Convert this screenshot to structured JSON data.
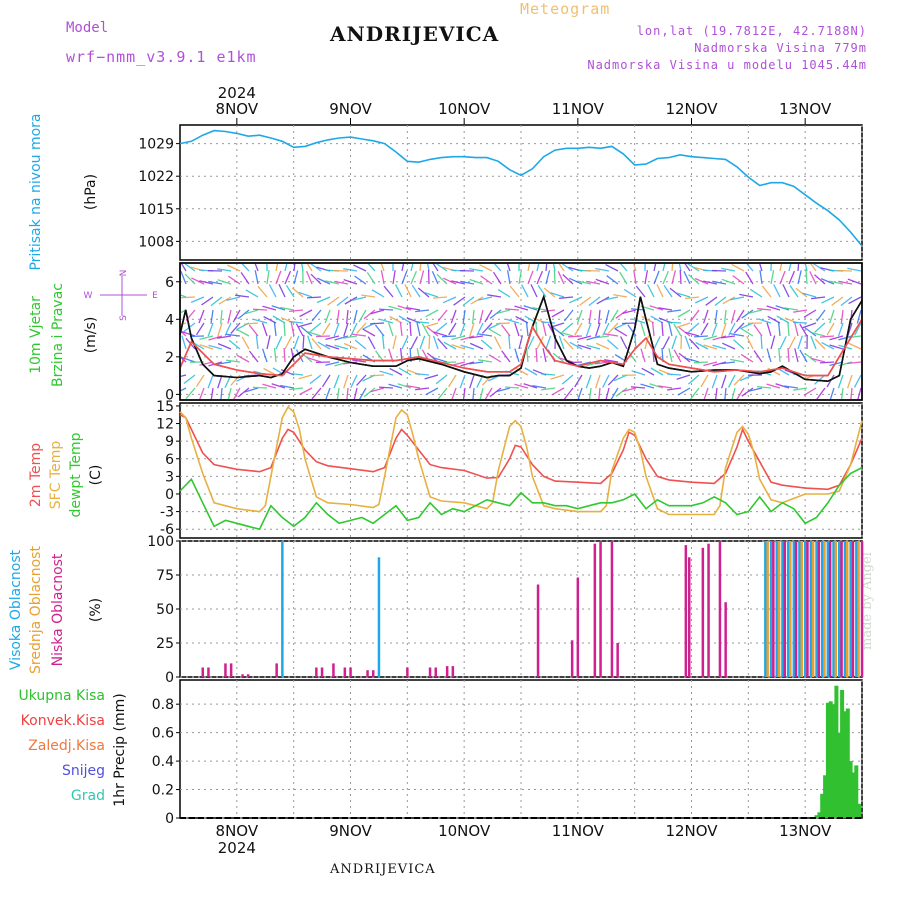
{
  "header": {
    "title": "ANDRIJEVICA",
    "subtitle": "Meteogram",
    "model_label": "Model",
    "model_name": "wrf−nmm_v3.9.1  e1km",
    "coords": "lon,lat (19.7812E, 42.7188N)",
    "elevation": "Nadmorska Visina 779m",
    "elevation_model": "Nadmorska Visina u modelu 1045.44m",
    "year": "2024"
  },
  "footer": {
    "location": "ANDRIJEVICA",
    "made_by": "made by Angel"
  },
  "colors": {
    "pressure": "#1ea8e8",
    "temp2m": "#f05050",
    "sfc": "#e8b040",
    "dewpt": "#30c830",
    "cloud_high": "#1ea8e8",
    "cloud_mid": "#e8a030",
    "cloud_low": "#d02090",
    "precip": "#30c030",
    "purple": "#b050d8"
  },
  "chart_data": [
    {
      "type": "line",
      "panel": "pressure",
      "ylabel": [
        "Pritisak na nivou mora",
        "(hPa)"
      ],
      "ylim": [
        1004,
        1033
      ],
      "yticks": [
        1008,
        1015,
        1022,
        1029
      ],
      "x_dates": [
        "8NOV",
        "9NOV",
        "10NOV",
        "11NOV",
        "12NOV",
        "13NOV"
      ],
      "x_start": 7.5,
      "x_end": 13.5,
      "grid": true,
      "series": [
        {
          "color": "#1ea8e8",
          "x": [
            7.5,
            7.6,
            7.7,
            7.8,
            7.9,
            8.0,
            8.1,
            8.2,
            8.3,
            8.4,
            8.5,
            8.6,
            8.7,
            8.8,
            8.9,
            9.0,
            9.1,
            9.2,
            9.3,
            9.4,
            9.5,
            9.6,
            9.7,
            9.8,
            9.9,
            10.0,
            10.1,
            10.2,
            10.3,
            10.4,
            10.5,
            10.6,
            10.7,
            10.8,
            10.9,
            11.0,
            11.1,
            11.2,
            11.3,
            11.4,
            11.5,
            11.6,
            11.7,
            11.8,
            11.9,
            12.0,
            12.1,
            12.2,
            12.3,
            12.4,
            12.5,
            12.6,
            12.7,
            12.8,
            12.9,
            13.0,
            13.1,
            13.2,
            13.3,
            13.4,
            13.5
          ],
          "y": [
            1029,
            1029.5,
            1030.8,
            1031.8,
            1031.6,
            1031.2,
            1030.6,
            1030.8,
            1030.2,
            1029.5,
            1028.2,
            1028.4,
            1029.2,
            1029.8,
            1030.2,
            1030.4,
            1030,
            1029.6,
            1029,
            1027.2,
            1025.2,
            1025,
            1025.6,
            1026,
            1026.2,
            1026.2,
            1026,
            1026,
            1025.2,
            1023.4,
            1022.2,
            1023.6,
            1026.2,
            1027.6,
            1028,
            1028,
            1028.2,
            1028,
            1028.4,
            1026.8,
            1024.4,
            1024.6,
            1025.8,
            1026,
            1026.6,
            1026.2,
            1026,
            1025.8,
            1025.6,
            1024,
            1021.8,
            1020,
            1020.6,
            1020.6,
            1019.8,
            1018,
            1016.2,
            1014.6,
            1012.6,
            1010,
            1007
          ]
        }
      ]
    },
    {
      "type": "line",
      "panel": "wind",
      "ylabel": [
        "10m Vjetar",
        "Brzina i Pravac",
        "(m/s)"
      ],
      "compass": [
        "N",
        "S",
        "W",
        "E"
      ],
      "ylim": [
        -0.3,
        7
      ],
      "yticks": [
        0,
        2,
        4,
        6
      ],
      "grid": true,
      "series": [
        {
          "name": "speed",
          "color": "#111111",
          "x": [
            7.5,
            7.55,
            7.6,
            7.7,
            7.8,
            8.0,
            8.2,
            8.3,
            8.4,
            8.5,
            8.6,
            8.8,
            9.0,
            9.2,
            9.4,
            9.5,
            9.6,
            9.8,
            10.0,
            10.2,
            10.3,
            10.4,
            10.5,
            10.55,
            10.6,
            10.7,
            10.8,
            10.9,
            11.0,
            11.1,
            11.2,
            11.3,
            11.4,
            11.5,
            11.55,
            11.6,
            11.7,
            11.8,
            12.0,
            12.2,
            12.4,
            12.6,
            12.7,
            12.8,
            13.0,
            13.2,
            13.3,
            13.4,
            13.5
          ],
          "y": [
            3.2,
            4.5,
            3.0,
            1.6,
            1.0,
            0.9,
            1.0,
            0.9,
            1.1,
            2.0,
            2.4,
            2.0,
            1.7,
            1.5,
            1.5,
            1.8,
            1.9,
            1.6,
            1.2,
            0.9,
            1.0,
            1.0,
            1.4,
            2.6,
            3.6,
            5.2,
            3.0,
            1.8,
            1.5,
            1.4,
            1.5,
            1.7,
            1.5,
            3.5,
            5.2,
            4.0,
            1.6,
            1.4,
            1.2,
            1.3,
            1.3,
            1.1,
            1.2,
            1.5,
            0.8,
            0.7,
            1.0,
            4.0,
            5.0
          ]
        },
        {
          "name": "gust",
          "color": "#f05050",
          "x": [
            7.5,
            7.6,
            7.8,
            8.0,
            8.2,
            8.4,
            8.6,
            8.8,
            9.0,
            9.2,
            9.4,
            9.6,
            9.8,
            10.0,
            10.2,
            10.4,
            10.5,
            10.6,
            10.7,
            10.8,
            11.0,
            11.2,
            11.4,
            11.5,
            11.6,
            11.7,
            11.8,
            12.0,
            12.2,
            12.4,
            12.6,
            12.8,
            13.0,
            13.2,
            13.4,
            13.5
          ],
          "y": [
            1.4,
            2.8,
            1.6,
            1.3,
            1.1,
            1.0,
            2.2,
            2.0,
            1.9,
            1.8,
            1.8,
            2.0,
            1.7,
            1.4,
            1.2,
            1.2,
            1.6,
            3.6,
            2.6,
            1.8,
            1.5,
            1.8,
            1.6,
            2.4,
            3.0,
            2.0,
            1.6,
            1.4,
            1.2,
            1.3,
            1.2,
            1.4,
            1.0,
            1.0,
            3.0,
            4.0
          ]
        }
      ]
    },
    {
      "type": "line",
      "panel": "temperature",
      "ylabel": [
        "2m Temp",
        "SFC Temp",
        "dewpt Temp",
        "(C)"
      ],
      "ylim": [
        -7.5,
        15.5
      ],
      "yticks": [
        -6,
        -3,
        0,
        3,
        6,
        9,
        12,
        15
      ],
      "grid": true,
      "series": [
        {
          "name": "2m Temp",
          "color": "#f05050",
          "x": [
            7.5,
            7.55,
            7.6,
            7.7,
            7.8,
            8.0,
            8.2,
            8.3,
            8.4,
            8.45,
            8.5,
            8.6,
            8.7,
            8.8,
            9.0,
            9.2,
            9.3,
            9.4,
            9.45,
            9.5,
            9.6,
            9.7,
            9.8,
            10.0,
            10.2,
            10.3,
            10.4,
            10.45,
            10.5,
            10.6,
            10.7,
            10.8,
            11.0,
            11.2,
            11.3,
            11.4,
            11.45,
            11.5,
            11.6,
            11.7,
            11.8,
            12.0,
            12.2,
            12.3,
            12.4,
            12.45,
            12.5,
            12.6,
            12.7,
            12.8,
            13.0,
            13.2,
            13.3,
            13.4,
            13.5
          ],
          "y": [
            13.5,
            13,
            11,
            7,
            5,
            4.2,
            3.8,
            4.5,
            9.5,
            11,
            10.5,
            7.5,
            5.5,
            4.8,
            4.3,
            3.8,
            4.5,
            9.5,
            11,
            10,
            7.5,
            5,
            4.5,
            4,
            2.7,
            2.8,
            6,
            8.3,
            8,
            5,
            3,
            2.2,
            2,
            1.8,
            3.5,
            7.5,
            10.5,
            10,
            6,
            3,
            2.4,
            2,
            1.8,
            3.5,
            8,
            11,
            9,
            5.5,
            2,
            1.5,
            1,
            0.8,
            1.5,
            5,
            9.5
          ]
        },
        {
          "name": "SFC Temp",
          "color": "#e8b040",
          "x": [
            7.5,
            7.55,
            7.6,
            7.7,
            7.8,
            8.0,
            8.2,
            8.25,
            8.3,
            8.4,
            8.45,
            8.5,
            8.55,
            8.6,
            8.7,
            8.8,
            9.0,
            9.2,
            9.25,
            9.3,
            9.4,
            9.45,
            9.5,
            9.55,
            9.6,
            9.7,
            9.8,
            10.0,
            10.2,
            10.25,
            10.3,
            10.4,
            10.45,
            10.5,
            10.55,
            10.6,
            10.7,
            10.8,
            11.0,
            11.2,
            11.25,
            11.3,
            11.4,
            11.45,
            11.5,
            11.55,
            11.6,
            11.7,
            11.8,
            12.0,
            12.2,
            12.25,
            12.3,
            12.4,
            12.45,
            12.5,
            12.55,
            12.6,
            12.7,
            12.8,
            13.0,
            13.2,
            13.3,
            13.4,
            13.5
          ],
          "y": [
            14,
            13,
            9.5,
            3.5,
            -1.5,
            -2.5,
            -3,
            -2,
            3,
            13,
            14.8,
            14,
            11,
            6,
            -0.5,
            -1.5,
            -1.8,
            -2.3,
            -1.8,
            3,
            13,
            14.3,
            13.5,
            10,
            6,
            -0.5,
            -1.2,
            -1.5,
            -2.5,
            -1.5,
            4,
            11.5,
            12.5,
            11.5,
            8,
            3,
            -2,
            -2.5,
            -3,
            -3,
            -2,
            4,
            9.5,
            11,
            10.5,
            7.5,
            3,
            -2.5,
            -3.5,
            -3.5,
            -3.5,
            -2,
            4.5,
            10.5,
            11.5,
            10.2,
            7,
            2.5,
            -1,
            -1.5,
            0,
            0,
            0.5,
            5,
            12.5
          ]
        },
        {
          "name": "dewpt Temp",
          "color": "#30c830",
          "x": [
            7.5,
            7.6,
            7.7,
            7.8,
            7.9,
            8.0,
            8.1,
            8.2,
            8.3,
            8.4,
            8.5,
            8.6,
            8.7,
            8.8,
            8.9,
            9.0,
            9.1,
            9.2,
            9.3,
            9.4,
            9.5,
            9.6,
            9.7,
            9.8,
            9.9,
            10.0,
            10.1,
            10.2,
            10.3,
            10.4,
            10.5,
            10.6,
            10.7,
            10.8,
            10.9,
            11.0,
            11.1,
            11.2,
            11.3,
            11.4,
            11.5,
            11.6,
            11.7,
            11.8,
            11.9,
            12.0,
            12.1,
            12.2,
            12.3,
            12.4,
            12.5,
            12.6,
            12.7,
            12.8,
            12.9,
            13.0,
            13.1,
            13.2,
            13.3,
            13.4,
            13.5
          ],
          "y": [
            0.5,
            2.5,
            -1.5,
            -5.5,
            -4.5,
            -5,
            -5.5,
            -6,
            -2,
            -4,
            -5.5,
            -4,
            -1.5,
            -3.5,
            -5,
            -4.5,
            -4,
            -5,
            -3.5,
            -2,
            -4.5,
            -4,
            -1.5,
            -3.5,
            -2.5,
            -3,
            -2,
            -1,
            -1.5,
            -2,
            0.2,
            -1.5,
            -1.5,
            -2,
            -2,
            -2.5,
            -2,
            -1.5,
            -1.5,
            -1,
            0,
            -2.5,
            -1,
            -2,
            -2,
            -2,
            -1.5,
            -0.5,
            -1.5,
            -3.5,
            -3,
            -0.5,
            -3,
            -1.5,
            -2.5,
            -5,
            -4,
            -1.5,
            1.5,
            3.5,
            4.5
          ]
        }
      ]
    },
    {
      "type": "bar",
      "panel": "clouds",
      "ylabel": [
        "Visoka Oblacnost",
        "Srednja Oblacnost",
        "Niska Oblacnost",
        "(%)"
      ],
      "ylim": [
        0,
        100
      ],
      "yticks": [
        0,
        25,
        50,
        75,
        100
      ],
      "grid": true,
      "series": [
        {
          "name": "Visoka Oblacnost",
          "color": "#1ea8e8",
          "x": [
            8.4,
            9.25,
            12.65,
            12.7,
            12.75,
            12.8,
            12.85,
            12.9,
            12.95,
            13.0,
            13.05,
            13.1,
            13.15,
            13.2,
            13.25,
            13.3,
            13.35,
            13.4,
            13.45
          ],
          "values": [
            100,
            88,
            100,
            100,
            100,
            100,
            100,
            100,
            100,
            100,
            100,
            100,
            100,
            100,
            100,
            100,
            100,
            100,
            100
          ]
        },
        {
          "name": "Srednja Oblacnost",
          "color": "#e8a030",
          "x": [
            12.67,
            12.77,
            12.87,
            12.97,
            13.07,
            13.17,
            13.27,
            13.37,
            13.47
          ],
          "values": [
            100,
            100,
            100,
            100,
            100,
            100,
            100,
            100,
            100
          ]
        },
        {
          "name": "Niska Oblacnost",
          "color": "#d02090",
          "x": [
            7.7,
            7.75,
            7.9,
            7.95,
            8.05,
            8.1,
            8.35,
            8.7,
            8.75,
            8.85,
            8.95,
            9.0,
            9.15,
            9.2,
            9.5,
            9.7,
            9.75,
            9.85,
            9.9,
            10.65,
            10.95,
            11.0,
            11.15,
            11.2,
            11.3,
            11.35,
            11.95,
            11.98,
            12.1,
            12.15,
            12.25,
            12.3,
            12.72,
            12.82,
            12.92,
            13.02,
            13.12,
            13.22,
            13.32,
            13.42,
            13.5
          ],
          "values": [
            7,
            7,
            10,
            10,
            2,
            2,
            10,
            7,
            7,
            10,
            7,
            7,
            5,
            5,
            7,
            7,
            7,
            8,
            8,
            68,
            27,
            73,
            98,
            100,
            100,
            25,
            97,
            88,
            95,
            98,
            100,
            55,
            100,
            100,
            100,
            100,
            100,
            100,
            100,
            100,
            100
          ]
        }
      ]
    },
    {
      "type": "bar",
      "panel": "precip",
      "ylabel": [
        "Ukupna Kisa",
        "Konvek.Kisa",
        "Zaledj.Kisa",
        "Snijeg",
        "Grad",
        "1hr Precip (mm)"
      ],
      "ylim": [
        0,
        0.97
      ],
      "yticks": [
        0,
        0.2,
        0.4,
        0.6,
        0.8
      ],
      "ytick_labels": [
        "0",
        "0.2",
        "0.4",
        "0.6",
        "0.8"
      ],
      "label_colors": [
        "#30c030",
        "#f04040",
        "#f07840",
        "#5050e0",
        "#30c8b0"
      ],
      "grid": true,
      "x_dates_bottom": [
        "8NOV",
        "9NOV",
        "10NOV",
        "11NOV",
        "12NOV",
        "13NOV"
      ],
      "series": [
        {
          "name": "Ukupna Kisa",
          "color": "#30c030",
          "x": [
            13.1,
            13.125,
            13.15,
            13.175,
            13.2,
            13.225,
            13.25,
            13.275,
            13.3,
            13.325,
            13.35,
            13.375,
            13.4,
            13.425,
            13.45,
            13.475
          ],
          "values": [
            0.02,
            0.04,
            0.17,
            0.3,
            0.81,
            0.82,
            0.8,
            0.93,
            0.6,
            0.9,
            0.75,
            0.77,
            0.4,
            0.32,
            0.37,
            0.1
          ]
        }
      ]
    }
  ]
}
